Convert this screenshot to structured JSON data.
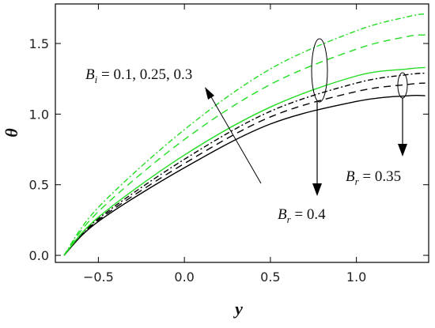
{
  "chart_data": {
    "type": "line",
    "xlabel": "y",
    "ylabel": "θ",
    "xlim": [
      -0.75,
      1.42
    ],
    "ylim": [
      -0.05,
      1.78
    ],
    "x_ticks": [
      -0.5,
      0.0,
      0.5,
      1.0
    ],
    "x_tick_labels": [
      "−0.5",
      "0.0",
      "0.5",
      "1.0"
    ],
    "y_ticks": [
      0.0,
      0.5,
      1.0,
      1.5
    ],
    "y_tick_labels": [
      "0.0",
      "0.5",
      "1.0",
      "1.5"
    ],
    "series": [
      {
        "color": "#000000",
        "dash": "solid",
        "x": [
          -0.7,
          -0.5,
          0.0,
          0.5,
          1.0,
          1.3,
          1.4
        ],
        "y": [
          0.0,
          0.24,
          0.62,
          0.93,
          1.09,
          1.13,
          1.13
        ]
      },
      {
        "color": "#000000",
        "dash": "dashed",
        "x": [
          -0.7,
          -0.5,
          0.0,
          0.5,
          1.0,
          1.3,
          1.4
        ],
        "y": [
          0.0,
          0.25,
          0.65,
          0.98,
          1.16,
          1.21,
          1.22
        ]
      },
      {
        "color": "#000000",
        "dash": "dashdot",
        "x": [
          -0.7,
          -0.5,
          0.0,
          0.5,
          1.0,
          1.3,
          1.4
        ],
        "y": [
          0.0,
          0.26,
          0.68,
          1.02,
          1.22,
          1.28,
          1.29
        ]
      },
      {
        "color": "#22dd22",
        "dash": "solid",
        "x": [
          -0.7,
          -0.5,
          0.0,
          0.5,
          1.0,
          1.3,
          1.4
        ],
        "y": [
          0.0,
          0.27,
          0.71,
          1.05,
          1.27,
          1.32,
          1.33
        ]
      },
      {
        "color": "#22dd22",
        "dash": "dashed",
        "x": [
          -0.7,
          -0.5,
          0.0,
          0.5,
          1.0,
          1.3,
          1.4
        ],
        "y": [
          0.0,
          0.31,
          0.82,
          1.21,
          1.46,
          1.55,
          1.56
        ]
      },
      {
        "color": "#22dd22",
        "dash": "dashdot",
        "x": [
          -0.7,
          -0.5,
          0.0,
          0.5,
          1.0,
          1.3,
          1.4
        ],
        "y": [
          0.0,
          0.34,
          0.89,
          1.32,
          1.59,
          1.69,
          1.71
        ]
      }
    ],
    "annotations": [
      {
        "base": "B",
        "sub": "i",
        "rest": " = 0.1, 0.25, 0.3"
      },
      {
        "base": "B",
        "sub": "r",
        "rest": " = 0.35"
      },
      {
        "base": "B",
        "sub": "r",
        "rest": " = 0.4"
      }
    ]
  }
}
